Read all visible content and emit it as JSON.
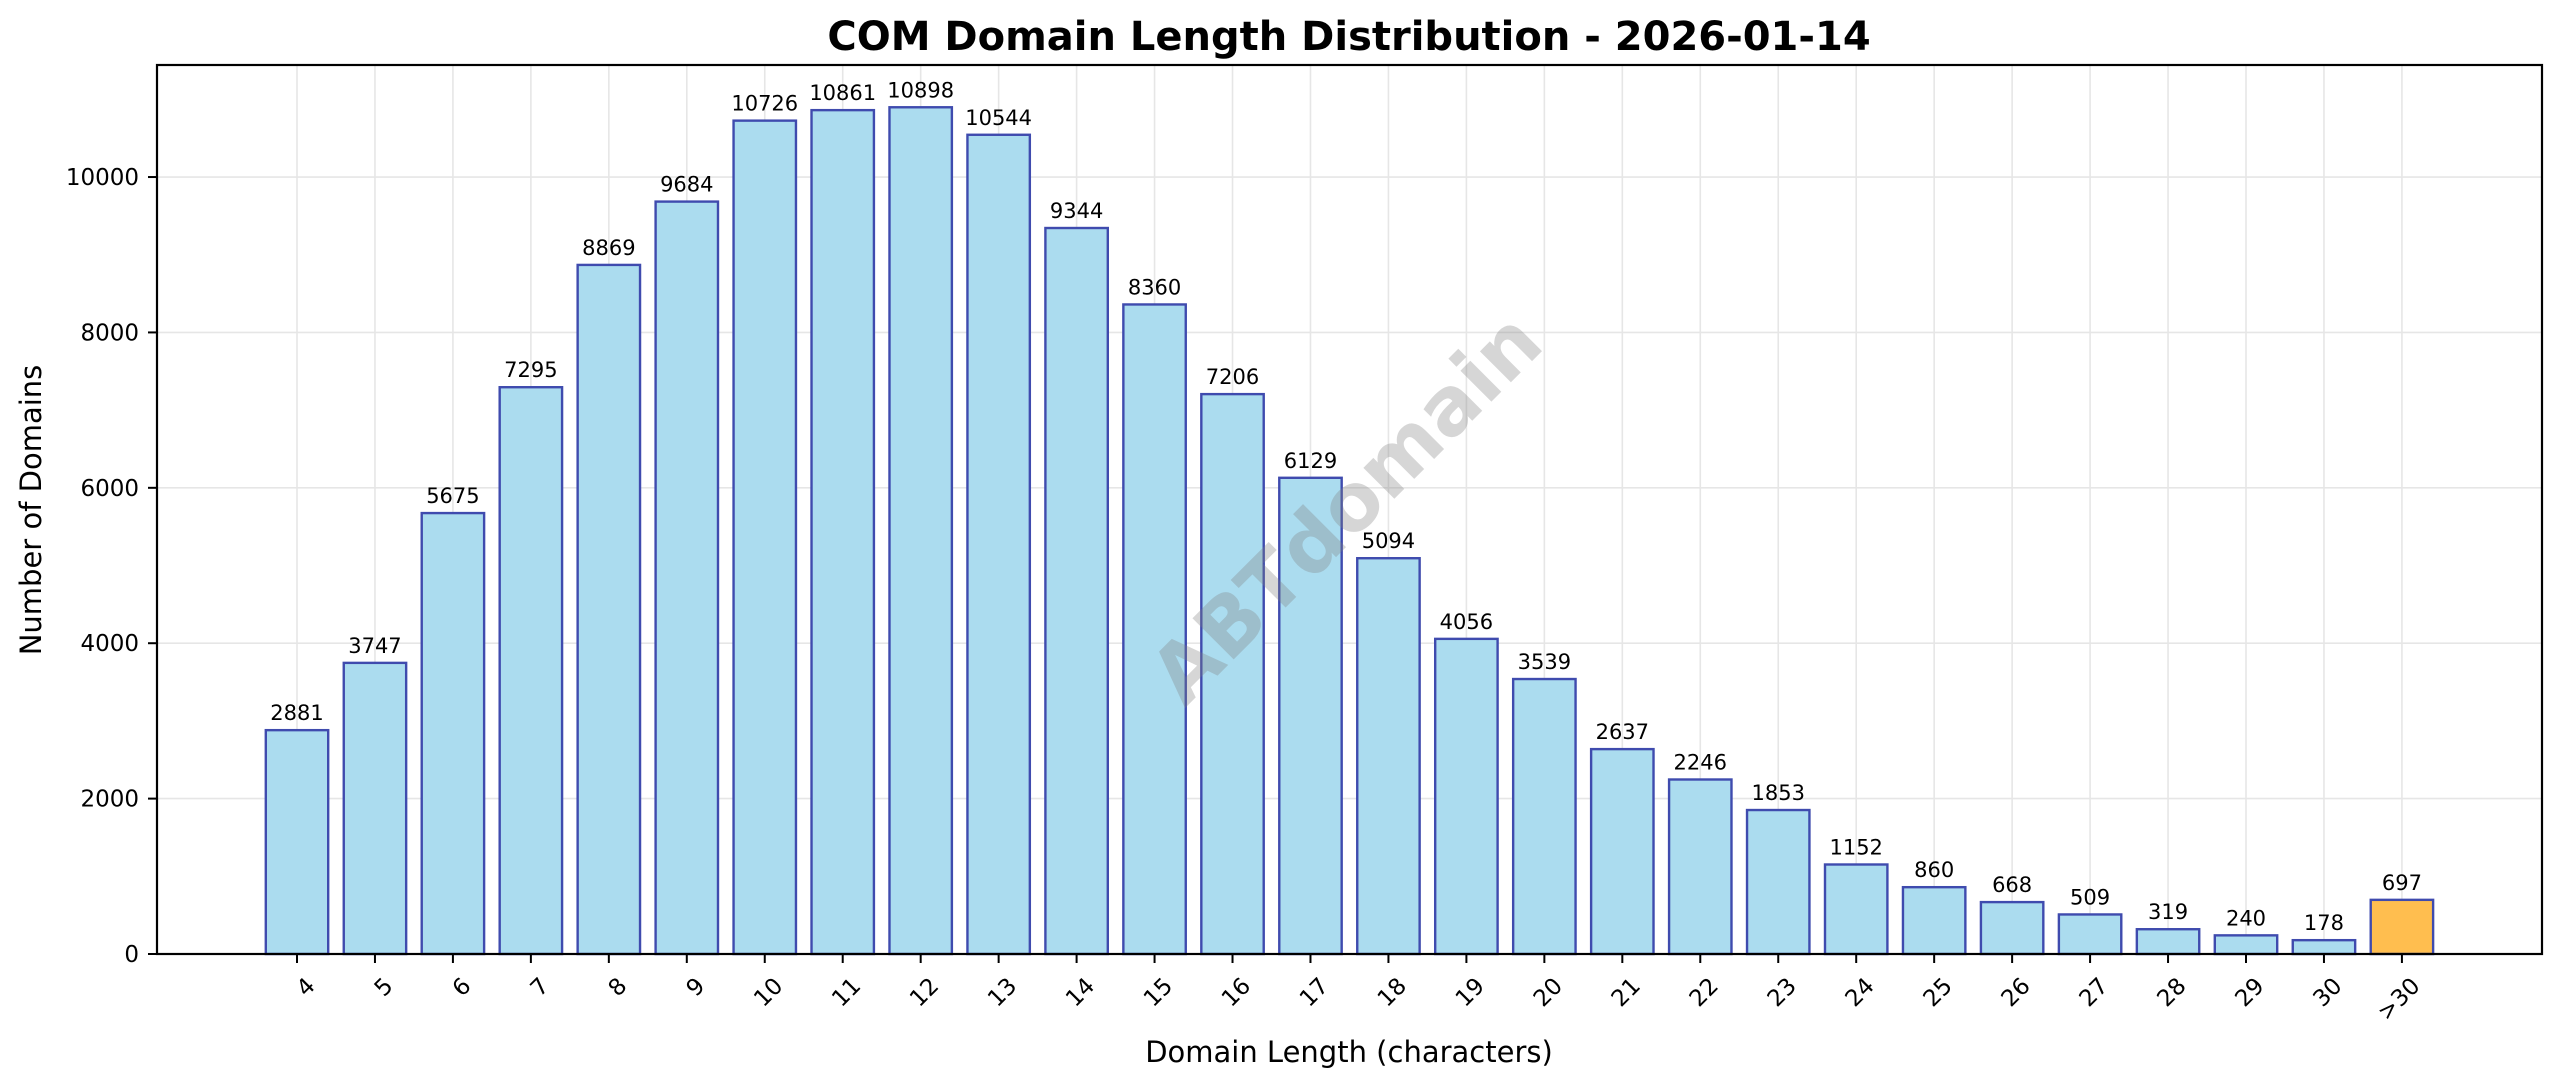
{
  "chart_data": {
    "type": "bar",
    "title": "COM Domain Length Distribution - 2026-01-14",
    "xlabel": "Domain Length (characters)",
    "ylabel": "Number of Domains",
    "categories": [
      "4",
      "5",
      "6",
      "7",
      "8",
      "9",
      "10",
      "11",
      "12",
      "13",
      "14",
      "15",
      "16",
      "17",
      "18",
      "19",
      "20",
      "21",
      "22",
      "23",
      "24",
      "25",
      "26",
      "27",
      "28",
      "29",
      "30",
      ">30"
    ],
    "values": [
      2881,
      3747,
      5675,
      7295,
      8869,
      9684,
      10726,
      10861,
      10898,
      10544,
      9344,
      8360,
      7206,
      6129,
      5094,
      4056,
      3539,
      2637,
      2246,
      1853,
      1152,
      860,
      668,
      509,
      319,
      240,
      178,
      697
    ],
    "highlight_categories": [
      ">30"
    ],
    "ylim": [
      0,
      11442
    ],
    "yticks": [
      0,
      2000,
      4000,
      6000,
      8000,
      10000
    ],
    "xtick_rotation": 45,
    "grid": true,
    "legend": null,
    "watermark": "ABTdomain",
    "colors": {
      "bar_fill": "#abdcef",
      "bar_highlight_fill": "#ffbe4f",
      "bar_edge": "#3f4bae"
    }
  }
}
